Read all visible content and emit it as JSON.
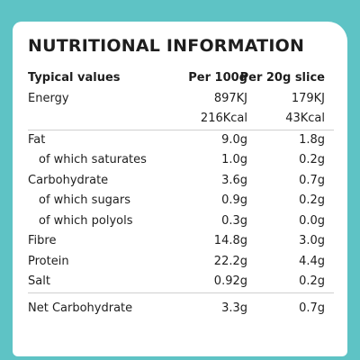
{
  "title": "NUTRITIONAL INFORMATION",
  "colors": {
    "background": "#5ec3c5",
    "panel": "#ffffff",
    "text": "#1e1e1e"
  },
  "table": {
    "headers": [
      "Typical values",
      "Per 100g",
      "Per 20g slice"
    ],
    "rows": [
      {
        "label": "Energy",
        "per100g": "897KJ",
        "perSlice": "179KJ"
      },
      {
        "label": "",
        "per100g": "216Kcal",
        "perSlice": "43Kcal"
      },
      {
        "label": "Fat",
        "per100g": "9.0g",
        "perSlice": "1.8g"
      },
      {
        "label": "of which saturates",
        "per100g": "1.0g",
        "perSlice": "0.2g"
      },
      {
        "label": "Carbohydrate",
        "per100g": "3.6g",
        "perSlice": "0.7g"
      },
      {
        "label": "of which sugars",
        "per100g": "0.9g",
        "perSlice": "0.2g"
      },
      {
        "label": "of which polyols",
        "per100g": "0.3g",
        "perSlice": "0.0g"
      },
      {
        "label": "Fibre",
        "per100g": "14.8g",
        "perSlice": "3.0g"
      },
      {
        "label": "Protein",
        "per100g": "22.2g",
        "perSlice": "4.4g"
      },
      {
        "label": "Salt",
        "per100g": "0.92g",
        "perSlice": "0.2g"
      },
      {
        "label": "Net Carbohydrate",
        "per100g": "3.3g",
        "perSlice": "0.7g"
      }
    ]
  }
}
